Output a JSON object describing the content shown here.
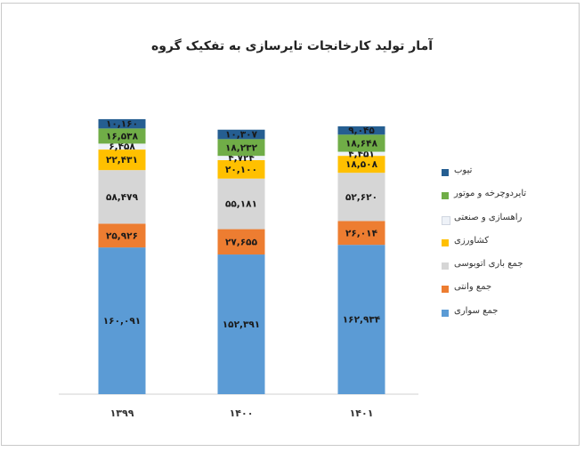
{
  "chart_data": {
    "type": "bar",
    "stacked": true,
    "title": "آمار تولید کارخانجات تایرسازی به تفکیک گروه",
    "categories": [
      "۱۳۹۹",
      "۱۴۰۰",
      "۱۴۰۱"
    ],
    "legend_position": "right",
    "grid": false,
    "series": [
      {
        "name": "جمع سواری",
        "color": "#5b9bd5",
        "values": [
          160091,
          152391,
          162934
        ],
        "labels": [
          "۱۶۰,۰۹۱",
          "۱۵۲,۳۹۱",
          "۱۶۲,۹۳۴"
        ]
      },
      {
        "name": "جمع وانتی",
        "color": "#ed7d31",
        "values": [
          25926,
          27655,
          26014
        ],
        "labels": [
          "۲۵,۹۲۶",
          "۲۷,۶۵۵",
          "۲۶,۰۱۴"
        ]
      },
      {
        "name": "جمع باری اتوبوسی",
        "color": "#d6d6d6",
        "values": [
          58479,
          55181,
          52620
        ],
        "labels": [
          "۵۸,۴۷۹",
          "۵۵,۱۸۱",
          "۵۲,۶۲۰"
        ]
      },
      {
        "name": "کشاورزی",
        "color": "#ffc000",
        "values": [
          22431,
          20100,
          18508
        ],
        "labels": [
          "۲۲,۴۳۱",
          "۲۰,۱۰۰",
          "۱۸,۵۰۸"
        ]
      },
      {
        "name": "راهسازی و صنعتی",
        "color": "#eef2f8",
        "values": [
          6458,
          4724,
          4451
        ],
        "labels": [
          "۶,۴۵۸",
          "۴,۷۲۴",
          "۴,۴۵۱"
        ]
      },
      {
        "name": "تایردوچرخه و موتور",
        "color": "#70ad47",
        "values": [
          16538,
          18232,
          18648
        ],
        "labels": [
          "۱۶,۵۳۸",
          "۱۸,۲۳۲",
          "۱۸,۶۴۸"
        ]
      },
      {
        "name": "تیوب",
        "color": "#255e91",
        "values": [
          10160,
          10307,
          9045
        ],
        "labels": [
          "۱۰,۱۶۰",
          "۱۰,۳۰۷",
          "۹,۰۴۵"
        ]
      }
    ]
  }
}
